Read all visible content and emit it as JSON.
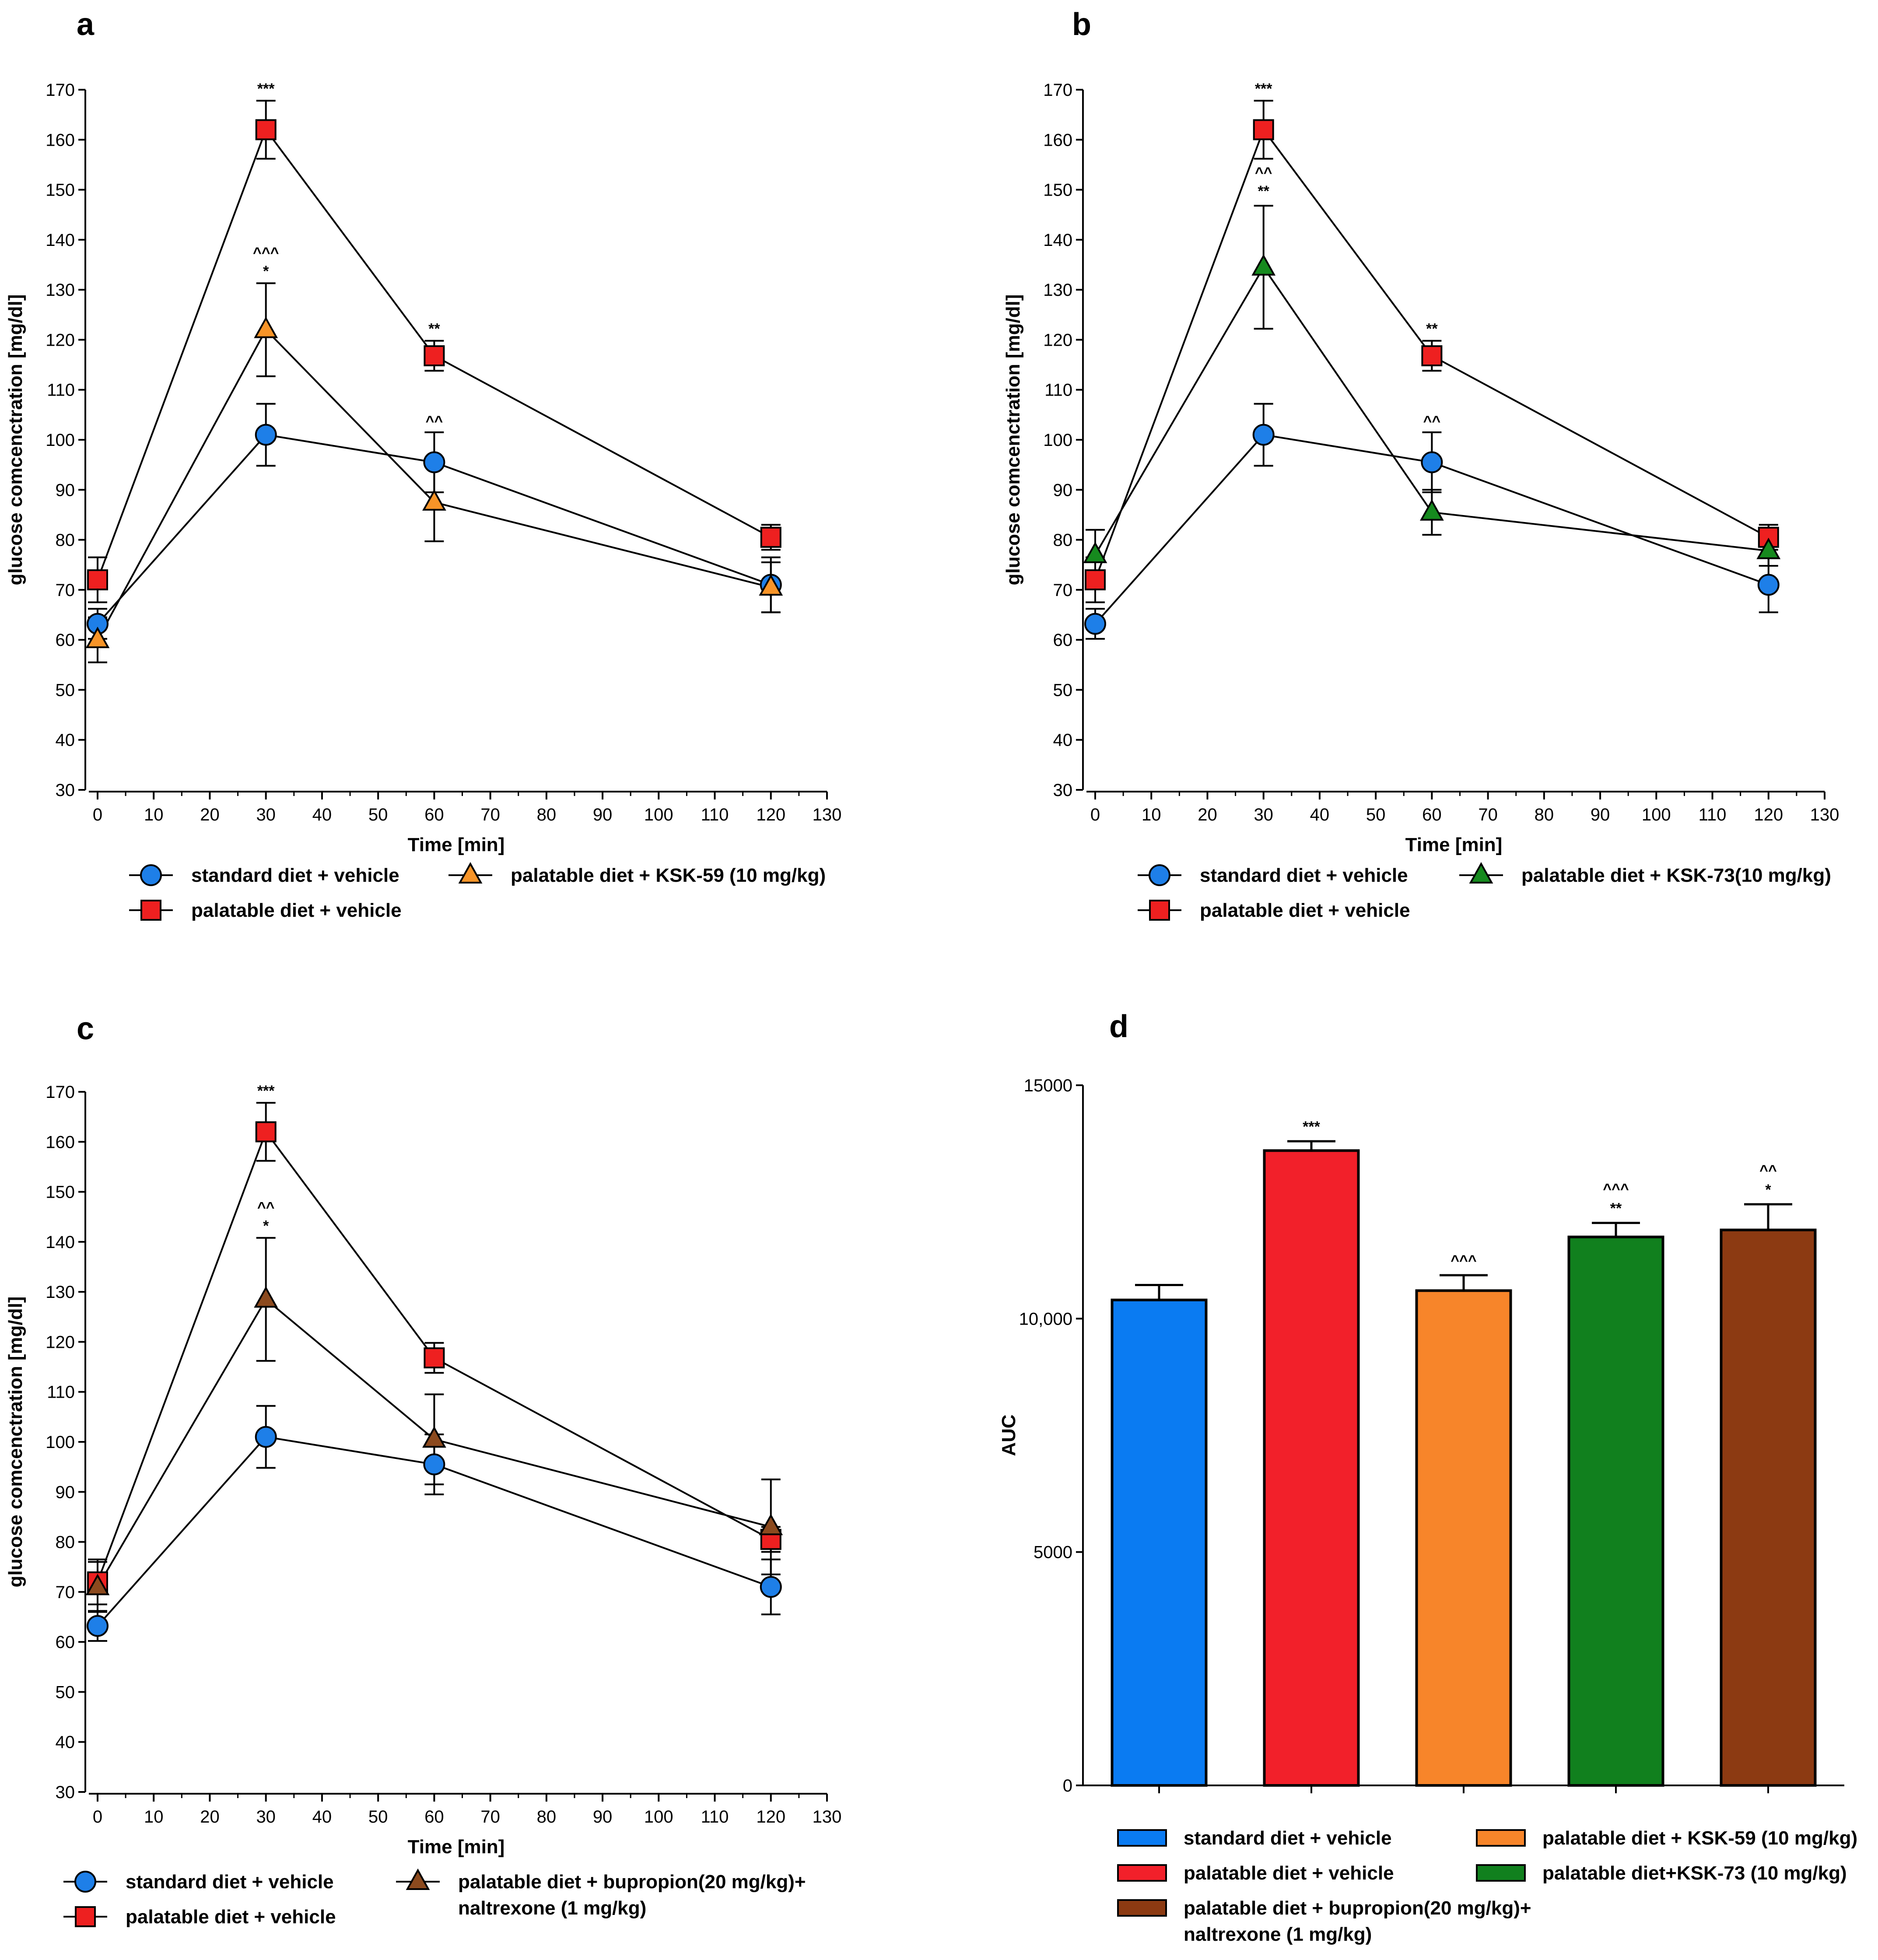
{
  "chart_data": [
    {
      "type": "line",
      "panel": "a",
      "xlabel": "Time [min]",
      "ylabel": "glucose comcenctration [mg/dl]",
      "xlim": [
        0,
        130
      ],
      "ylim": [
        30,
        170
      ],
      "xticks": [
        0,
        10,
        20,
        30,
        40,
        50,
        60,
        70,
        80,
        90,
        100,
        110,
        120,
        130
      ],
      "yticks": [
        30,
        40,
        50,
        60,
        70,
        80,
        90,
        100,
        110,
        120,
        130,
        140,
        150,
        160,
        170
      ],
      "x": [
        0,
        30,
        60,
        120
      ],
      "series": [
        {
          "name": "standard diet + vehicle",
          "marker": "circle",
          "color": "#1E7FE8",
          "values": [
            63.2,
            101.0,
            95.5,
            71.0
          ],
          "errors": [
            3.0,
            6.2,
            6.0,
            5.5
          ]
        },
        {
          "name": "palatable diet + vehicle",
          "marker": "square",
          "color": "#EE2020",
          "values": [
            72.0,
            162.0,
            116.8,
            80.5
          ],
          "errors": [
            4.5,
            5.8,
            3.0,
            2.5
          ]
        },
        {
          "name": "palatable diet + KSK-59 (10 mg/kg)",
          "marker": "triangle",
          "color": "#F79428",
          "values": [
            60.0,
            122.0,
            87.5,
            70.5
          ],
          "errors": [
            4.5,
            9.3,
            7.8,
            5.0
          ]
        }
      ],
      "annotations": [
        {
          "x": 30,
          "y": 168,
          "lines": [
            "***"
          ]
        },
        {
          "x": 30,
          "y": 131.5,
          "lines": [
            "^^^",
            "*"
          ]
        },
        {
          "x": 60,
          "y": 120,
          "lines": [
            "**"
          ]
        },
        {
          "x": 60,
          "y": 101.5,
          "lines": [
            "^^"
          ]
        }
      ],
      "legend": [
        {
          "series": 0,
          "label": "standard diet + vehicle"
        },
        {
          "series": 2,
          "label": "palatable diet + KSK-59 (10 mg/kg)"
        },
        {
          "series": 1,
          "label": "palatable diet + vehicle"
        }
      ]
    },
    {
      "type": "line",
      "panel": "b",
      "xlabel": "Time [min]",
      "ylabel": "glucose comcenctration [mg/dl]",
      "xlim": [
        0,
        130
      ],
      "ylim": [
        30,
        170
      ],
      "xticks": [
        0,
        10,
        20,
        30,
        40,
        50,
        60,
        70,
        80,
        90,
        100,
        110,
        120,
        130
      ],
      "yticks": [
        30,
        40,
        50,
        60,
        70,
        80,
        90,
        100,
        110,
        120,
        130,
        140,
        150,
        160,
        170
      ],
      "x": [
        0,
        30,
        60,
        120
      ],
      "series": [
        {
          "name": "standard diet + vehicle",
          "marker": "circle",
          "color": "#1E7FE8",
          "values": [
            63.2,
            101.0,
            95.5,
            71.0
          ],
          "errors": [
            3.0,
            6.2,
            6.0,
            5.5
          ]
        },
        {
          "name": "palatable diet + vehicle",
          "marker": "square",
          "color": "#EE2020",
          "values": [
            72.0,
            162.0,
            116.8,
            80.5
          ],
          "errors": [
            4.5,
            5.8,
            3.0,
            2.5
          ]
        },
        {
          "name": "palatable diet + KSK-73(10 mg/kg)",
          "marker": "triangle",
          "color": "#168A1E",
          "values": [
            77.0,
            134.5,
            85.5,
            77.8
          ],
          "errors": [
            5.0,
            12.3,
            4.5,
            3.0
          ]
        }
      ],
      "annotations": [
        {
          "x": 30,
          "y": 168,
          "lines": [
            "***"
          ]
        },
        {
          "x": 30,
          "y": 147.5,
          "lines": [
            "^^",
            "**"
          ]
        },
        {
          "x": 60,
          "y": 120,
          "lines": [
            "**"
          ]
        },
        {
          "x": 60,
          "y": 101.5,
          "lines": [
            "^^"
          ]
        }
      ],
      "legend": [
        {
          "series": 0,
          "label": "standard diet + vehicle"
        },
        {
          "series": 2,
          "label": "palatable diet + KSK-73(10 mg/kg)"
        },
        {
          "series": 1,
          "label": "palatable diet + vehicle"
        }
      ]
    },
    {
      "type": "line",
      "panel": "c",
      "xlabel": "Time [min]",
      "ylabel": "glucose comcenctration [mg/dl]",
      "xlim": [
        0,
        130
      ],
      "ylim": [
        30,
        170
      ],
      "xticks": [
        0,
        10,
        20,
        30,
        40,
        50,
        60,
        70,
        80,
        90,
        100,
        110,
        120,
        130
      ],
      "yticks": [
        30,
        40,
        50,
        60,
        70,
        80,
        90,
        100,
        110,
        120,
        130,
        140,
        150,
        160,
        170
      ],
      "x": [
        0,
        30,
        60,
        120
      ],
      "series": [
        {
          "name": "standard diet + vehicle",
          "marker": "circle",
          "color": "#1E7FE8",
          "values": [
            63.2,
            101.0,
            95.5,
            71.0
          ],
          "errors": [
            3.0,
            6.2,
            6.0,
            5.5
          ]
        },
        {
          "name": "palatable diet + vehicle",
          "marker": "square",
          "color": "#EE2020",
          "values": [
            72.0,
            162.0,
            116.8,
            80.5
          ],
          "errors": [
            4.5,
            5.8,
            3.0,
            2.5
          ]
        },
        {
          "name": "palatable diet + bupropion(20 mg/kg)+ naltrexone (1 mg/kg)",
          "marker": "triangle",
          "color": "#8C4A1E",
          "values": [
            71.0,
            128.5,
            100.5,
            83.0
          ],
          "errors": [
            5.0,
            12.3,
            9.0,
            9.5
          ]
        }
      ],
      "annotations": [
        {
          "x": 30,
          "y": 168,
          "lines": [
            "***"
          ]
        },
        {
          "x": 30,
          "y": 141,
          "lines": [
            "^^",
            "*"
          ]
        }
      ],
      "legend": [
        {
          "series": 0,
          "label": "standard diet + vehicle"
        },
        {
          "series": 2,
          "label": "palatable diet + bupropion(20 mg/kg)+",
          "label2": "naltrexone (1 mg/kg)"
        },
        {
          "series": 1,
          "label": "palatable diet + vehicle"
        }
      ]
    },
    {
      "type": "bar",
      "panel": "d",
      "ylabel": "AUC",
      "ylim": [
        0,
        15000
      ],
      "yticks": [
        0,
        5000,
        10000,
        15000
      ],
      "ytick_labels": [
        "0",
        "5000",
        "10,000",
        "15000"
      ],
      "categories": [
        "standard diet + vehicle",
        "palatable diet + vehicle",
        "palatable diet + KSK-59 (10 mg/kg)",
        "palatable diet+KSK-73 (10 mg/kg)",
        "palatable diet + bupropion(20 mg/kg)+ naltrexone (1 mg/kg)"
      ],
      "values": [
        10400,
        13600,
        10600,
        11750,
        11900
      ],
      "errors": [
        320,
        200,
        330,
        300,
        550
      ],
      "colors": [
        "#0A7BF2",
        "#F2202A",
        "#F7852A",
        "#11801E",
        "#8C3A12"
      ],
      "annotations": [
        {
          "bar": 1,
          "lines": [
            "***"
          ]
        },
        {
          "bar": 2,
          "lines": [
            "^^^"
          ]
        },
        {
          "bar": 3,
          "lines": [
            "^^^",
            "**"
          ]
        },
        {
          "bar": 4,
          "lines": [
            "^^",
            "*"
          ]
        }
      ],
      "legend": [
        {
          "bar": 0,
          "label": "standard diet + vehicle"
        },
        {
          "bar": 2,
          "label": "palatable diet + KSK-59 (10 mg/kg)"
        },
        {
          "bar": 1,
          "label": "palatable diet + vehicle"
        },
        {
          "bar": 3,
          "label": "palatable diet+KSK-73 (10 mg/kg)"
        },
        {
          "bar": 4,
          "label": "palatable diet + bupropion(20 mg/kg)+",
          "label2": "naltrexone (1 mg/kg)"
        }
      ]
    }
  ]
}
